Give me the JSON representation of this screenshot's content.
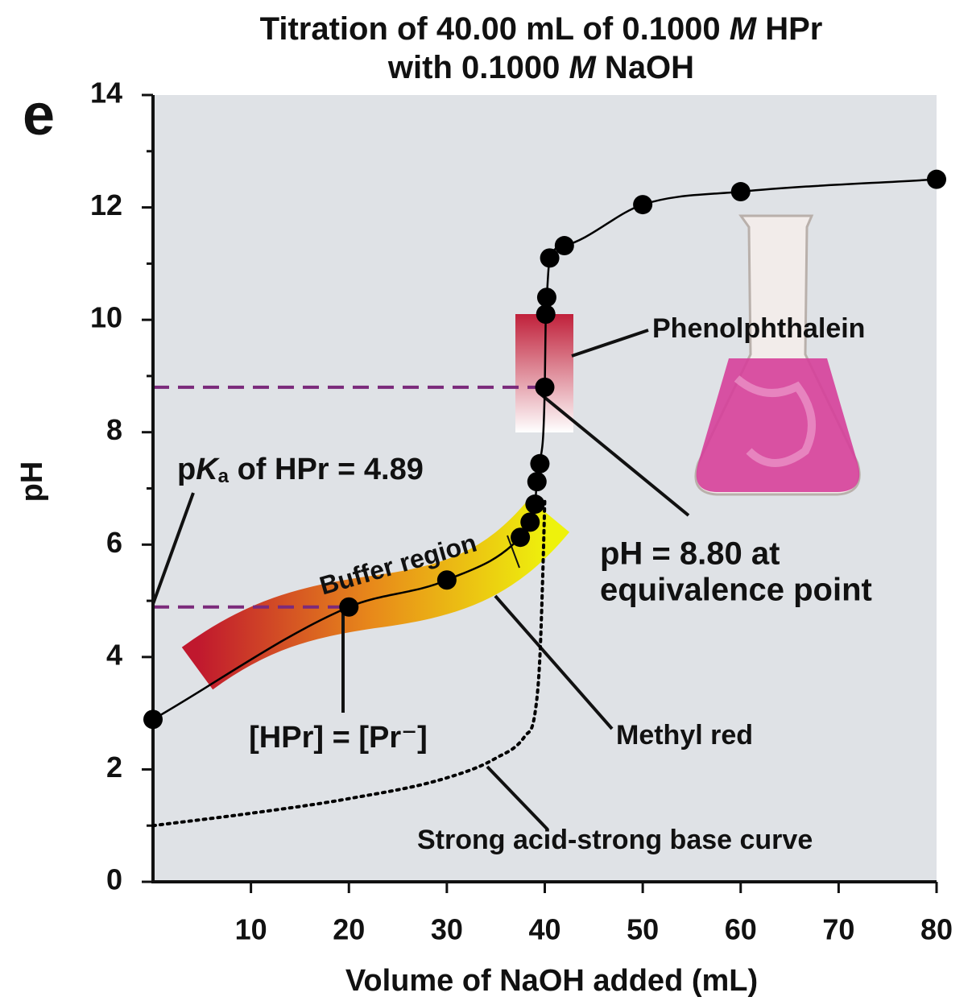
{
  "chart_data": {
    "type": "line",
    "panel_label": "e",
    "title": [
      [
        "Titration of 40.00 mL of 0.1000 ",
        "M",
        " HPr"
      ],
      [
        "with 0.1000 ",
        "M",
        " NaOH"
      ]
    ],
    "xlabel": "Volume of NaOH added (mL)",
    "ylabel": "pH",
    "xlim": [
      0,
      80
    ],
    "ylim": [
      0,
      14
    ],
    "xticks": [
      10,
      20,
      30,
      40,
      50,
      60,
      70,
      80
    ],
    "yticks": [
      0,
      2,
      4,
      6,
      8,
      10,
      12,
      14
    ],
    "yticks_minor": [
      1,
      3,
      5,
      7,
      9,
      11,
      13
    ],
    "series": [
      {
        "color": "#000000",
        "markers": true,
        "x": [
          0,
          20,
          30,
          37.5,
          38.5,
          39,
          39.2,
          39.5,
          40,
          40.1,
          40.2,
          40.5,
          42,
          50,
          60,
          80
        ],
        "values": [
          2.89,
          4.89,
          5.37,
          6.13,
          6.4,
          6.72,
          7.12,
          7.44,
          8.8,
          10.1,
          10.4,
          11.1,
          11.32,
          12.05,
          12.28,
          12.5
        ]
      },
      {
        "color": "#000000",
        "style": "dotted",
        "x": [
          0,
          10,
          20,
          30,
          35,
          38,
          39,
          39.5,
          39.8,
          40
        ],
        "values": [
          1.0,
          1.22,
          1.48,
          1.85,
          2.2,
          2.6,
          3.0,
          4.0,
          5.5,
          6.8
        ]
      }
    ],
    "pka_line": 4.89,
    "equivalence_line": 8.8,
    "annotations": {
      "pka": [
        "p",
        "K",
        "a",
        " of HPr = 4.89"
      ],
      "buffer": "Buffer region",
      "half": "[HPr] = [Pr⁻]",
      "phenolphthalein": "Phenolphthalein",
      "equivalence": [
        "pH = 8.80 at",
        "equivalence point"
      ],
      "methyl_red": "Methyl red",
      "strong": "Strong acid-strong base curve"
    }
  }
}
